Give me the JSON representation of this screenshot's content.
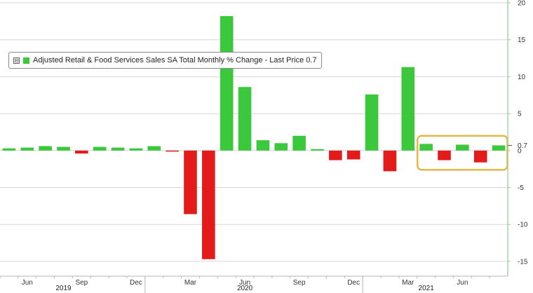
{
  "legend": {
    "toggle_symbol": "⊟",
    "label": "Adjusted Retail & Food Services Sales SA Total Monthly % Change - Last Price 0.7"
  },
  "chart_data": {
    "type": "bar",
    "title": "",
    "xlabel": "",
    "ylabel": "",
    "ylim": [
      -17,
      20
    ],
    "y_ticks": [
      -15,
      -10,
      -5,
      0,
      5,
      10,
      15,
      20
    ],
    "grid": "horizontal",
    "last_price_label": "0.7",
    "colors": {
      "positive": "#3cc83c",
      "negative": "#e41b1b",
      "highlight": "#e6b84a",
      "axis": "#8fce8f",
      "grid": "#d6d6d6"
    },
    "months": [
      "2019-05",
      "2019-06",
      "2019-07",
      "2019-08",
      "2019-09",
      "2019-10",
      "2019-11",
      "2019-12",
      "2020-01",
      "2020-02",
      "2020-03",
      "2020-04",
      "2020-05",
      "2020-06",
      "2020-07",
      "2020-08",
      "2020-09",
      "2020-10",
      "2020-11",
      "2020-12",
      "2021-01",
      "2021-02",
      "2021-03",
      "2021-04",
      "2021-05",
      "2021-06",
      "2021-07",
      "2021-08"
    ],
    "values": [
      0.3,
      0.4,
      0.6,
      0.5,
      -0.4,
      0.5,
      0.4,
      0.3,
      0.6,
      -0.1,
      -8.6,
      -14.7,
      18.2,
      8.6,
      1.4,
      1.0,
      2.0,
      0.2,
      -1.3,
      -1.2,
      7.6,
      -2.8,
      11.3,
      0.9,
      -1.3,
      0.8,
      -1.6,
      0.7
    ],
    "x_tick_labels": [
      {
        "label": "Jun",
        "month": "2019-06"
      },
      {
        "label": "Sep",
        "month": "2019-09"
      },
      {
        "label": "Dec",
        "month": "2019-12"
      },
      {
        "label": "Mar",
        "month": "2020-03"
      },
      {
        "label": "Jun",
        "month": "2020-06"
      },
      {
        "label": "Sep",
        "month": "2020-09"
      },
      {
        "label": "Dec",
        "month": "2020-12"
      },
      {
        "label": "Mar",
        "month": "2021-03"
      },
      {
        "label": "Jun",
        "month": "2021-06"
      }
    ],
    "year_labels": [
      {
        "label": "2019",
        "month": "2019-08"
      },
      {
        "label": "2020",
        "month": "2020-06"
      },
      {
        "label": "2021",
        "month": "2021-04"
      }
    ],
    "year_separators": [
      "2020-01",
      "2021-01"
    ],
    "highlight_range": [
      "2021-04",
      "2021-08"
    ]
  }
}
